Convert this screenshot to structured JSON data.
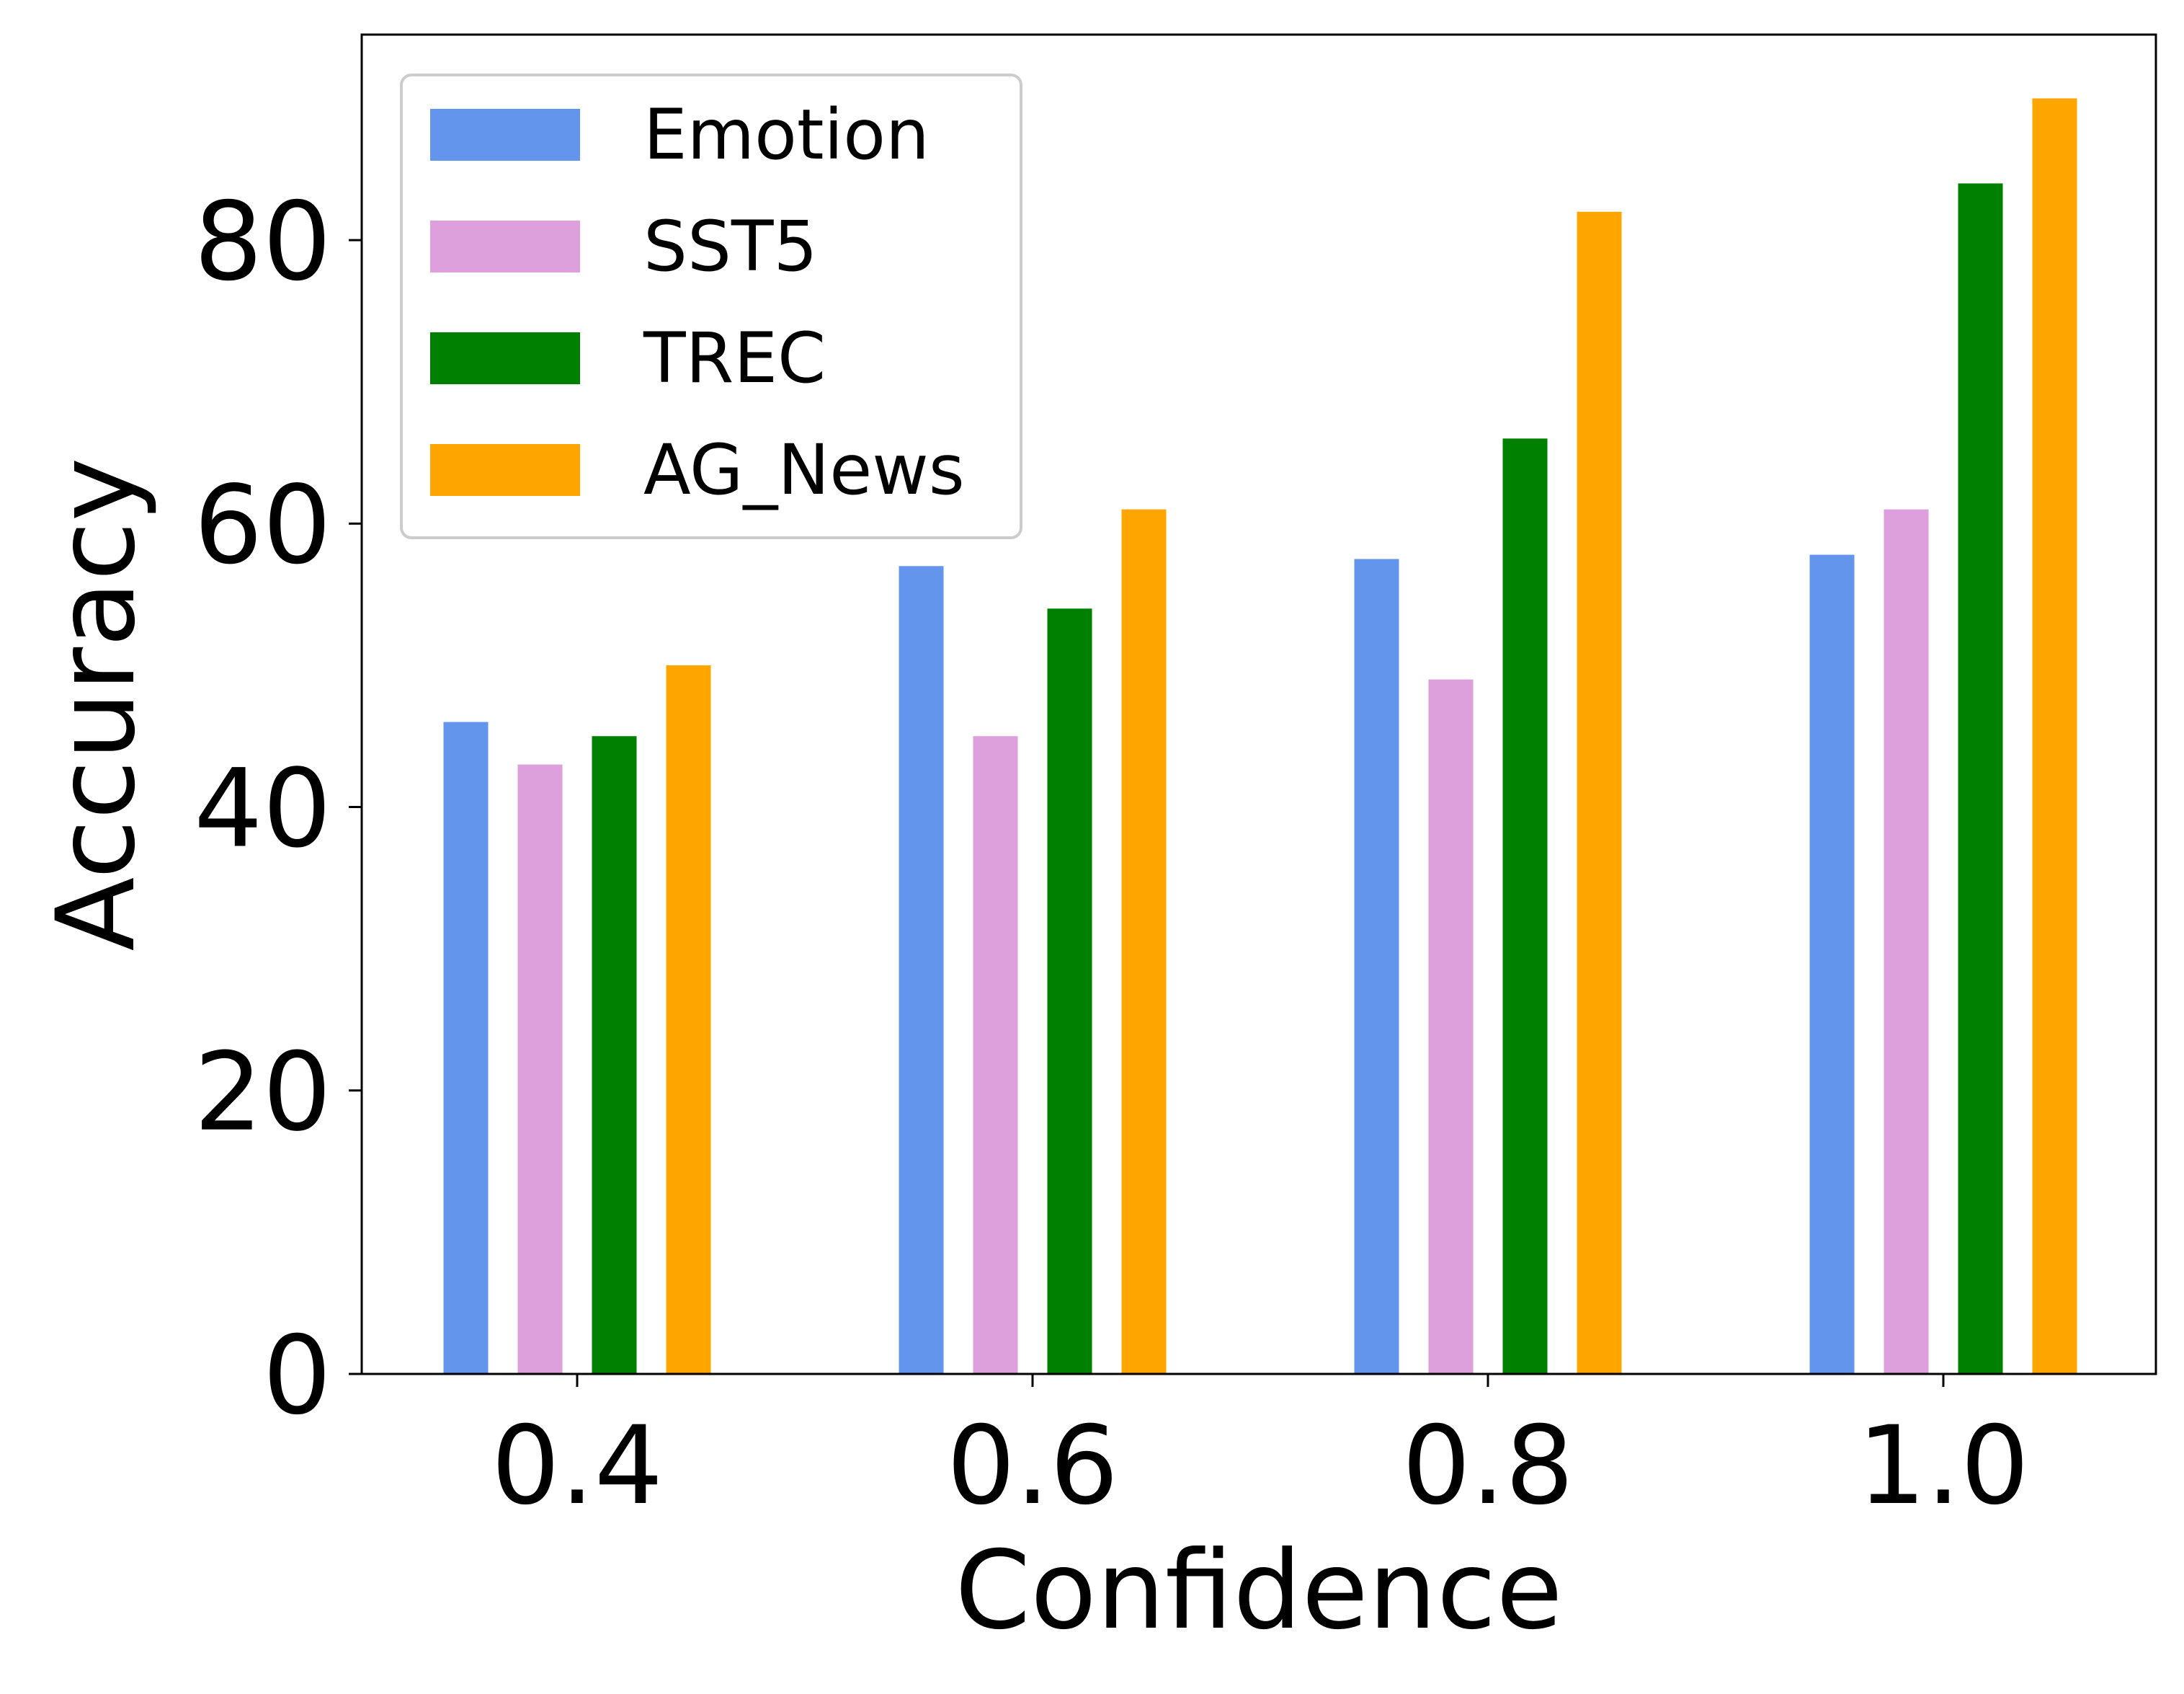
{
  "chart_data": {
    "type": "bar",
    "title": "",
    "xlabel": "Confidence",
    "ylabel": "Accuracy",
    "categories": [
      "0.4",
      "0.6",
      "0.8",
      "1.0"
    ],
    "ylim": [
      0,
      94.5
    ],
    "yticks": [
      0,
      20,
      40,
      60,
      80
    ],
    "grid": false,
    "legend_position": "top-left",
    "series": [
      {
        "name": "Emotion",
        "color": "#6495ED",
        "values": [
          46,
          57,
          57.5,
          57.8
        ]
      },
      {
        "name": "SST5",
        "color": "#DDA0DD",
        "values": [
          43,
          45,
          49,
          61
        ]
      },
      {
        "name": "TREC",
        "color": "#008000",
        "values": [
          45,
          54,
          66,
          84
        ]
      },
      {
        "name": "AG_News",
        "color": "#FFA500",
        "values": [
          50,
          61,
          82,
          90
        ]
      }
    ]
  }
}
